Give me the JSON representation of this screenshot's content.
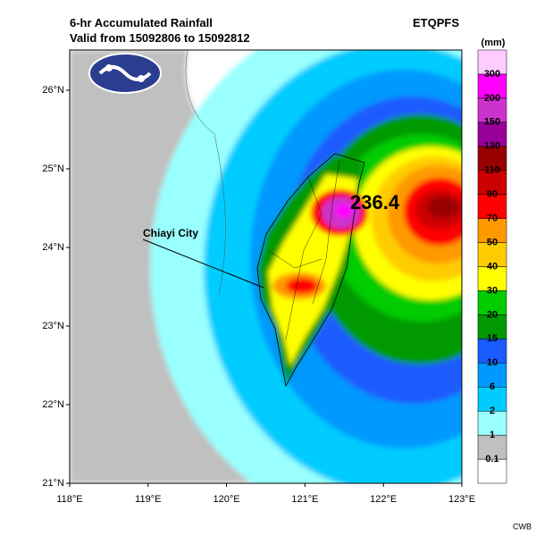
{
  "header": {
    "title": "6-hr Accumulated Rainfall",
    "subtitle": "Valid from 15092806 to 15092812",
    "product": "ETQPFS"
  },
  "colorbar": {
    "unit": "(mm)",
    "labels": [
      "0.1",
      "1",
      "2",
      "6",
      "10",
      "15",
      "20",
      "30",
      "40",
      "50",
      "70",
      "90",
      "110",
      "130",
      "150",
      "200",
      "300"
    ],
    "colors": [
      "#ffffff",
      "#c0c0c0",
      "#99ffff",
      "#00ccff",
      "#0099ff",
      "#1a5cff",
      "#009900",
      "#00cc00",
      "#ffff00",
      "#ffcc00",
      "#ff9900",
      "#ff0000",
      "#cc0000",
      "#990000",
      "#990099",
      "#cc33cc",
      "#ff00ff",
      "#ffccff"
    ]
  },
  "map": {
    "lon_labels": [
      "118°E",
      "119°E",
      "120°E",
      "121°E",
      "122°E",
      "123°E"
    ],
    "lat_labels": [
      "21°N",
      "22°N",
      "23°N",
      "24°N",
      "25°N",
      "26°N"
    ],
    "place_label": "Chiayi City",
    "max_label": "236.4",
    "credit": "CWB"
  }
}
